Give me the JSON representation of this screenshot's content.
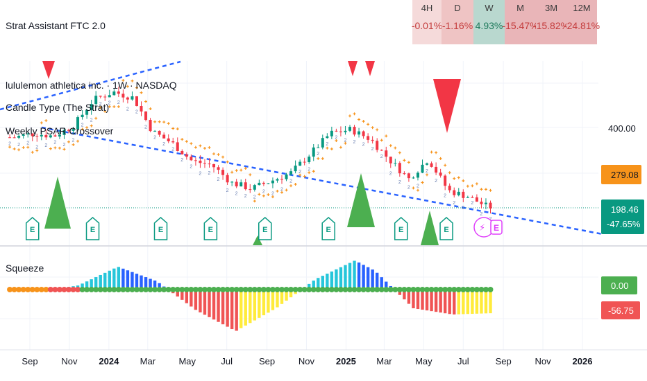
{
  "title": "Strat Assistant FTC 2.0",
  "indicators": [
    "lululemon athletica inc. · 1W · NASDAQ",
    "Candle Type (The Strat)",
    "Weekly PSAR Crossover"
  ],
  "ftc_table": [
    {
      "tf": "4H",
      "value": "-0.01%",
      "bg": "#f5dada",
      "fg": "#c43c3c"
    },
    {
      "tf": "D",
      "value": "-1.16%",
      "bg": "#efc4c4",
      "fg": "#c43c3c"
    },
    {
      "tf": "W",
      "value": "4.93%",
      "bg": "#b9d8cf",
      "fg": "#1f7a5c"
    },
    {
      "tf": "M",
      "value": "-15.47%",
      "bg": "#e9b5b8",
      "fg": "#c43c3c"
    },
    {
      "tf": "3M",
      "value": "-15.82%",
      "bg": "#e9b5b8",
      "fg": "#c43c3c"
    },
    {
      "tf": "12M",
      "value": "-24.81%",
      "bg": "#e9b5b8",
      "fg": "#c43c3c"
    }
  ],
  "price_axis": {
    "label": "400.00"
  },
  "price_tags": [
    {
      "name": "psar-tag",
      "text": "279.08",
      "bg": "#f7931a",
      "fg": "#131722"
    },
    {
      "name": "last-price-tag",
      "text": "198.46",
      "sub": "-47.65%",
      "bg": "#089981",
      "fg": "#ffffff"
    }
  ],
  "squeeze": {
    "title": "Squeeze",
    "tags": [
      {
        "name": "squeeze-zero-tag",
        "text": "0.00",
        "bg": "#4caf50"
      },
      {
        "name": "squeeze-value-tag",
        "text": "-56.75",
        "bg": "#f05454"
      }
    ]
  },
  "time_axis": [
    {
      "label": "Sep",
      "bold": false
    },
    {
      "label": "Nov",
      "bold": false
    },
    {
      "label": "2024",
      "bold": true
    },
    {
      "label": "Mar",
      "bold": false
    },
    {
      "label": "May",
      "bold": false
    },
    {
      "label": "Jul",
      "bold": false
    },
    {
      "label": "Sep",
      "bold": false
    },
    {
      "label": "Nov",
      "bold": false
    },
    {
      "label": "2025",
      "bold": true
    },
    {
      "label": "Mar",
      "bold": false
    },
    {
      "label": "May",
      "bold": false
    },
    {
      "label": "Jul",
      "bold": false
    },
    {
      "label": "Sep",
      "bold": false
    },
    {
      "label": "Nov",
      "bold": false
    },
    {
      "label": "2026",
      "bold": true
    }
  ],
  "earnings_marker": {
    "label": "E"
  },
  "strat_label": {
    "label": "2"
  },
  "chart_data": {
    "type": "candlestick",
    "symbol": "lululemon athletica inc.",
    "interval": "1W",
    "exchange": "NASDAQ",
    "last_price": 198.46,
    "psar_value": 279.08,
    "change_percent": -47.65,
    "y_reference": 400.0,
    "price_path": [
      {
        "date": "2023-08",
        "price": 375
      },
      {
        "date": "2023-09",
        "price": 385
      },
      {
        "date": "2023-10",
        "price": 378
      },
      {
        "date": "2023-11",
        "price": 405
      },
      {
        "date": "2023-12",
        "price": 470
      },
      {
        "date": "2024-01",
        "price": 490
      },
      {
        "date": "2024-02",
        "price": 475
      },
      {
        "date": "2024-03",
        "price": 390
      },
      {
        "date": "2024-04",
        "price": 360
      },
      {
        "date": "2024-05",
        "price": 315
      },
      {
        "date": "2024-06",
        "price": 305
      },
      {
        "date": "2024-07",
        "price": 260
      },
      {
        "date": "2024-08",
        "price": 245
      },
      {
        "date": "2024-09",
        "price": 265
      },
      {
        "date": "2024-10",
        "price": 285
      },
      {
        "date": "2024-11",
        "price": 335
      },
      {
        "date": "2024-12",
        "price": 385
      },
      {
        "date": "2025-01",
        "price": 395
      },
      {
        "date": "2025-02",
        "price": 370
      },
      {
        "date": "2025-03",
        "price": 320
      },
      {
        "date": "2025-04",
        "price": 270
      },
      {
        "date": "2025-05",
        "price": 320
      },
      {
        "date": "2025-06",
        "price": 240
      },
      {
        "date": "2025-07",
        "price": 225
      },
      {
        "date": "2025-08",
        "price": 198.46
      }
    ],
    "squeeze_histogram": [
      {
        "date": "2023-09",
        "value": -5
      },
      {
        "date": "2023-11",
        "value": 10
      },
      {
        "date": "2024-01",
        "value": 55
      },
      {
        "date": "2024-03",
        "value": 20
      },
      {
        "date": "2024-05",
        "value": -50
      },
      {
        "date": "2024-07",
        "value": -100
      },
      {
        "date": "2024-09",
        "value": -45
      },
      {
        "date": "2024-11",
        "value": 25
      },
      {
        "date": "2025-01",
        "value": 70
      },
      {
        "date": "2025-02",
        "value": 45
      },
      {
        "date": "2025-04",
        "value": -45
      },
      {
        "date": "2025-06",
        "value": -60
      },
      {
        "date": "2025-08",
        "value": -56.75
      }
    ]
  }
}
